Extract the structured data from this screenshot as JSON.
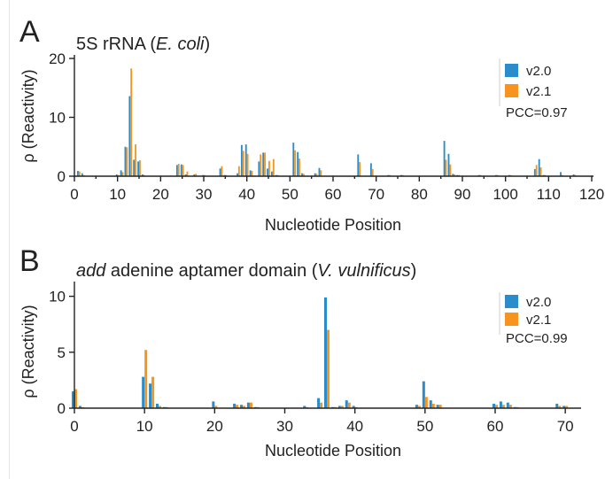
{
  "colors": {
    "v2_0": "#2a8ccb",
    "v2_1": "#f7941d"
  },
  "panels": [
    {
      "letter": "A",
      "title_plain": "5S rRNA (",
      "title_italic": "E. coli",
      "title_tail": ")",
      "legend": [
        "v2.0",
        "v2.1"
      ],
      "pcc": "PCC=0.97"
    },
    {
      "letter": "B",
      "title_italic_lead": "add",
      "title_plain": " adenine aptamer domain (",
      "title_italic": "V. vulnificus",
      "title_tail": ")",
      "legend": [
        "v2.0",
        "v2.1"
      ],
      "pcc": "PCC=0.99"
    }
  ],
  "chart_data": [
    {
      "type": "bar",
      "title": "5S rRNA (E. coli)",
      "xlabel": "Nucleotide Position",
      "ylabel": "ρ (Reactivity)",
      "xlim": [
        0,
        120
      ],
      "ylim": [
        0,
        20
      ],
      "xticks": [
        0,
        10,
        20,
        30,
        40,
        50,
        60,
        70,
        80,
        90,
        100,
        110,
        120
      ],
      "yticks": [
        0,
        10,
        20
      ],
      "legend_position": "top-right",
      "x": [
        1,
        2,
        10,
        11,
        12,
        13,
        14,
        15,
        16,
        24,
        25,
        26,
        28,
        30,
        34,
        35,
        38,
        39,
        40,
        41,
        43,
        44,
        45,
        46,
        47,
        51,
        52,
        53,
        56,
        57,
        66,
        69,
        73,
        76,
        86,
        87,
        88,
        89,
        94,
        98,
        101,
        107,
        108,
        109,
        113,
        116
      ],
      "series": [
        {
          "name": "v2.0",
          "values": [
            0.9,
            0.5,
            0.3,
            1.0,
            5.0,
            13.6,
            2.8,
            2.5,
            0.3,
            1.9,
            2.0,
            0.3,
            0.3,
            0.2,
            1.3,
            0.2,
            0.5,
            5.3,
            5.4,
            1.0,
            2.5,
            4.0,
            1.3,
            0.8,
            0.2,
            5.7,
            4.1,
            0.5,
            0.5,
            1.4,
            3.7,
            2.2,
            0.2,
            0.2,
            6.0,
            3.8,
            0.4,
            0.2,
            0.2,
            0.2,
            0.2,
            1.2,
            2.9,
            0.2,
            0.7,
            0.3
          ]
        },
        {
          "name": "v2.1",
          "values": [
            0.8,
            0.2,
            0.2,
            0.7,
            4.9,
            18.3,
            5.4,
            2.7,
            0.2,
            2.1,
            1.9,
            0.8,
            0.4,
            0.2,
            1.7,
            0.2,
            1.7,
            4.3,
            3.8,
            0.9,
            3.7,
            4.0,
            2.6,
            2.9,
            0.2,
            4.4,
            3.0,
            0.4,
            0.4,
            1.0,
            2.4,
            1.2,
            0.2,
            0.2,
            2.8,
            2.0,
            0.3,
            0.2,
            0.2,
            0.2,
            0.2,
            1.9,
            1.5,
            0.2,
            0.2,
            0.2
          ]
        }
      ]
    },
    {
      "type": "bar",
      "title": "add adenine aptamer domain (V. vulnificus)",
      "xlabel": "Nucleotide Position",
      "ylabel": "ρ (Reactivity)",
      "xlim": [
        0,
        72
      ],
      "ylim": [
        0,
        11
      ],
      "xticks": [
        0,
        10,
        20,
        30,
        40,
        50,
        60,
        70
      ],
      "yticks": [
        0,
        5,
        10
      ],
      "legend_position": "top-right",
      "x": [
        0,
        1,
        10,
        11,
        12,
        13,
        20,
        23,
        24,
        25,
        26,
        33,
        35,
        36,
        37,
        38,
        39,
        40,
        49,
        50,
        51,
        52,
        60,
        61,
        62,
        63,
        69,
        70
      ],
      "series": [
        {
          "name": "v2.0",
          "values": [
            1.5,
            0.2,
            2.8,
            2.2,
            0.4,
            0.1,
            0.6,
            0.4,
            0.3,
            0.5,
            0.1,
            0.2,
            0.9,
            9.9,
            0.1,
            0.2,
            0.7,
            0.2,
            0.3,
            2.4,
            0.7,
            0.3,
            0.4,
            0.6,
            0.5,
            0.1,
            0.4,
            0.2
          ]
        },
        {
          "name": "v2.1",
          "values": [
            1.7,
            0.1,
            5.2,
            2.8,
            0.2,
            0.1,
            0.2,
            0.3,
            0.2,
            0.5,
            0.1,
            0.1,
            0.5,
            7.0,
            0.1,
            0.2,
            0.5,
            0.1,
            0.2,
            1.0,
            0.4,
            0.3,
            0.3,
            0.3,
            0.3,
            0.1,
            0.2,
            0.2
          ]
        }
      ]
    }
  ]
}
